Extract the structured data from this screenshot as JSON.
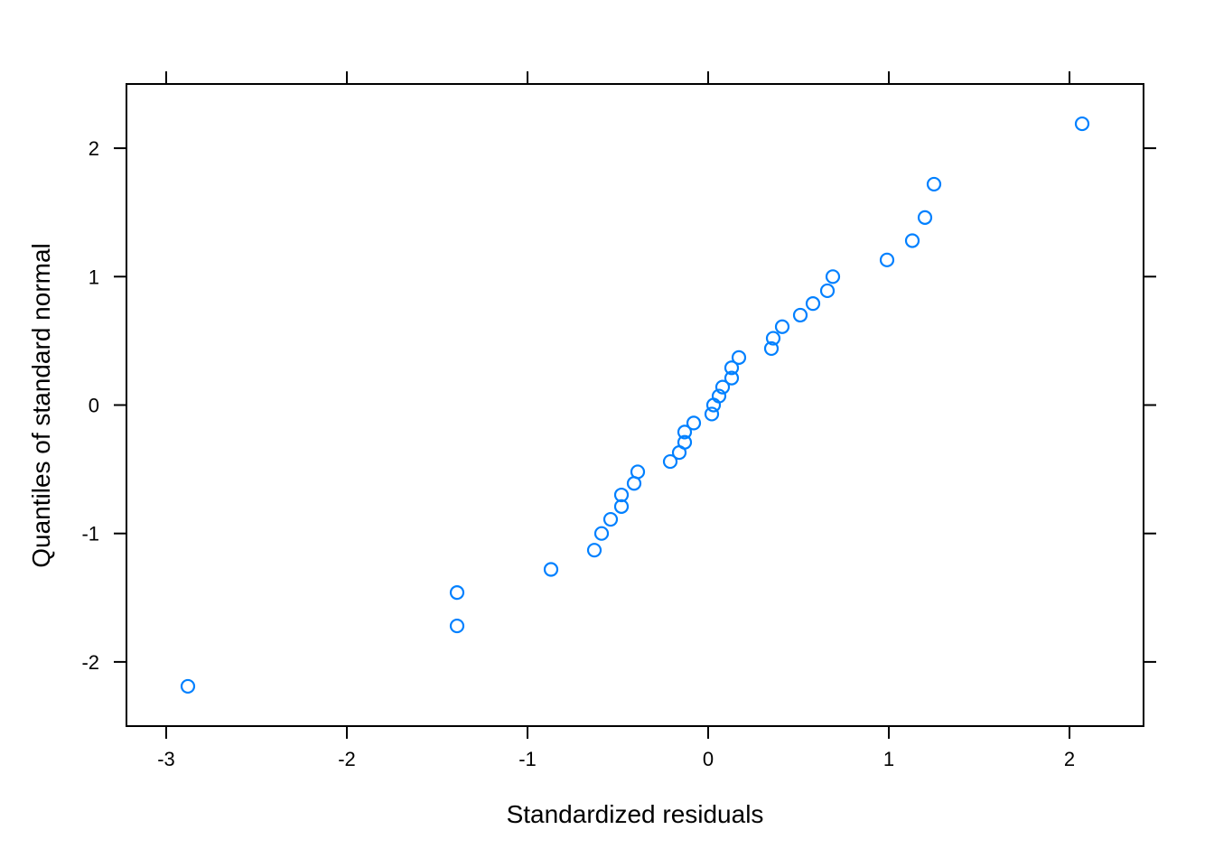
{
  "chart_data": {
    "type": "scatter",
    "title": "",
    "xlabel": "Standardized residuals",
    "ylabel": "Quantiles of standard normal",
    "xlim": [
      -3.22,
      2.41
    ],
    "ylim": [
      -2.5,
      2.5
    ],
    "xticks": [
      -3,
      -2,
      -1,
      0,
      1,
      2
    ],
    "yticks": [
      -2,
      -1,
      0,
      1,
      2
    ],
    "xtick_labels": [
      "-3",
      "-2",
      "-1",
      "0",
      "1",
      "2"
    ],
    "ytick_labels": [
      "-2",
      "-1",
      "0",
      "1",
      "2"
    ],
    "grid": false,
    "legend": "none",
    "marker": "open-circle",
    "point_color": "#0080ff",
    "points": [
      {
        "x": -2.88,
        "y": -2.19
      },
      {
        "x": -1.39,
        "y": -1.72
      },
      {
        "x": -1.39,
        "y": -1.46
      },
      {
        "x": -0.87,
        "y": -1.28
      },
      {
        "x": -0.63,
        "y": -1.13
      },
      {
        "x": -0.59,
        "y": -1.0
      },
      {
        "x": -0.54,
        "y": -0.89
      },
      {
        "x": -0.48,
        "y": -0.79
      },
      {
        "x": -0.48,
        "y": -0.7
      },
      {
        "x": -0.41,
        "y": -0.61
      },
      {
        "x": -0.39,
        "y": -0.52
      },
      {
        "x": -0.21,
        "y": -0.44
      },
      {
        "x": -0.16,
        "y": -0.37
      },
      {
        "x": -0.13,
        "y": -0.29
      },
      {
        "x": -0.13,
        "y": -0.21
      },
      {
        "x": -0.08,
        "y": -0.14
      },
      {
        "x": 0.02,
        "y": -0.07
      },
      {
        "x": 0.03,
        "y": 0.0
      },
      {
        "x": 0.06,
        "y": 0.07
      },
      {
        "x": 0.08,
        "y": 0.14
      },
      {
        "x": 0.13,
        "y": 0.21
      },
      {
        "x": 0.13,
        "y": 0.29
      },
      {
        "x": 0.17,
        "y": 0.37
      },
      {
        "x": 0.35,
        "y": 0.44
      },
      {
        "x": 0.36,
        "y": 0.52
      },
      {
        "x": 0.41,
        "y": 0.61
      },
      {
        "x": 0.51,
        "y": 0.7
      },
      {
        "x": 0.58,
        "y": 0.79
      },
      {
        "x": 0.66,
        "y": 0.89
      },
      {
        "x": 0.69,
        "y": 1.0
      },
      {
        "x": 0.99,
        "y": 1.13
      },
      {
        "x": 1.13,
        "y": 1.28
      },
      {
        "x": 1.2,
        "y": 1.46
      },
      {
        "x": 1.25,
        "y": 1.72
      },
      {
        "x": 2.07,
        "y": 2.19
      }
    ]
  }
}
